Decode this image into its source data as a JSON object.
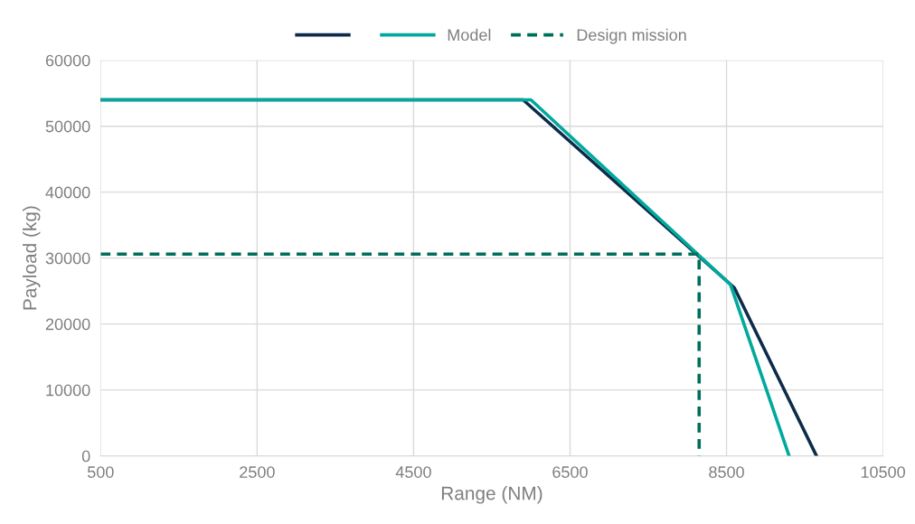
{
  "chart_data": {
    "type": "line",
    "xlabel": "Range (NM)",
    "ylabel": "Payload (kg)",
    "xlim": [
      500,
      10500
    ],
    "xticks": [
      500,
      2500,
      4500,
      6500,
      8500,
      10500
    ],
    "ylim": [
      0,
      60000
    ],
    "yticks": [
      0,
      10000,
      20000,
      30000,
      40000,
      50000,
      60000
    ],
    "grid": true,
    "legend": "top",
    "marker": "none",
    "series": [
      {
        "color": "#0d2c4a",
        "x": [
          500,
          5900,
          8600,
          9650
        ],
        "values": [
          54000,
          54000,
          25500,
          0
        ],
        "line_style": "solid"
      },
      {
        "name": "Model",
        "color": "#00a99d",
        "x": [
          500,
          6000,
          8550,
          9300
        ],
        "values": [
          54000,
          54000,
          26000,
          0
        ],
        "line_style": "solid"
      },
      {
        "name": "Design mission",
        "color": "#006e5c",
        "x": [
          500,
          8150,
          8150
        ],
        "values": [
          30600,
          30600,
          0
        ],
        "line_style": "dashed"
      }
    ]
  }
}
